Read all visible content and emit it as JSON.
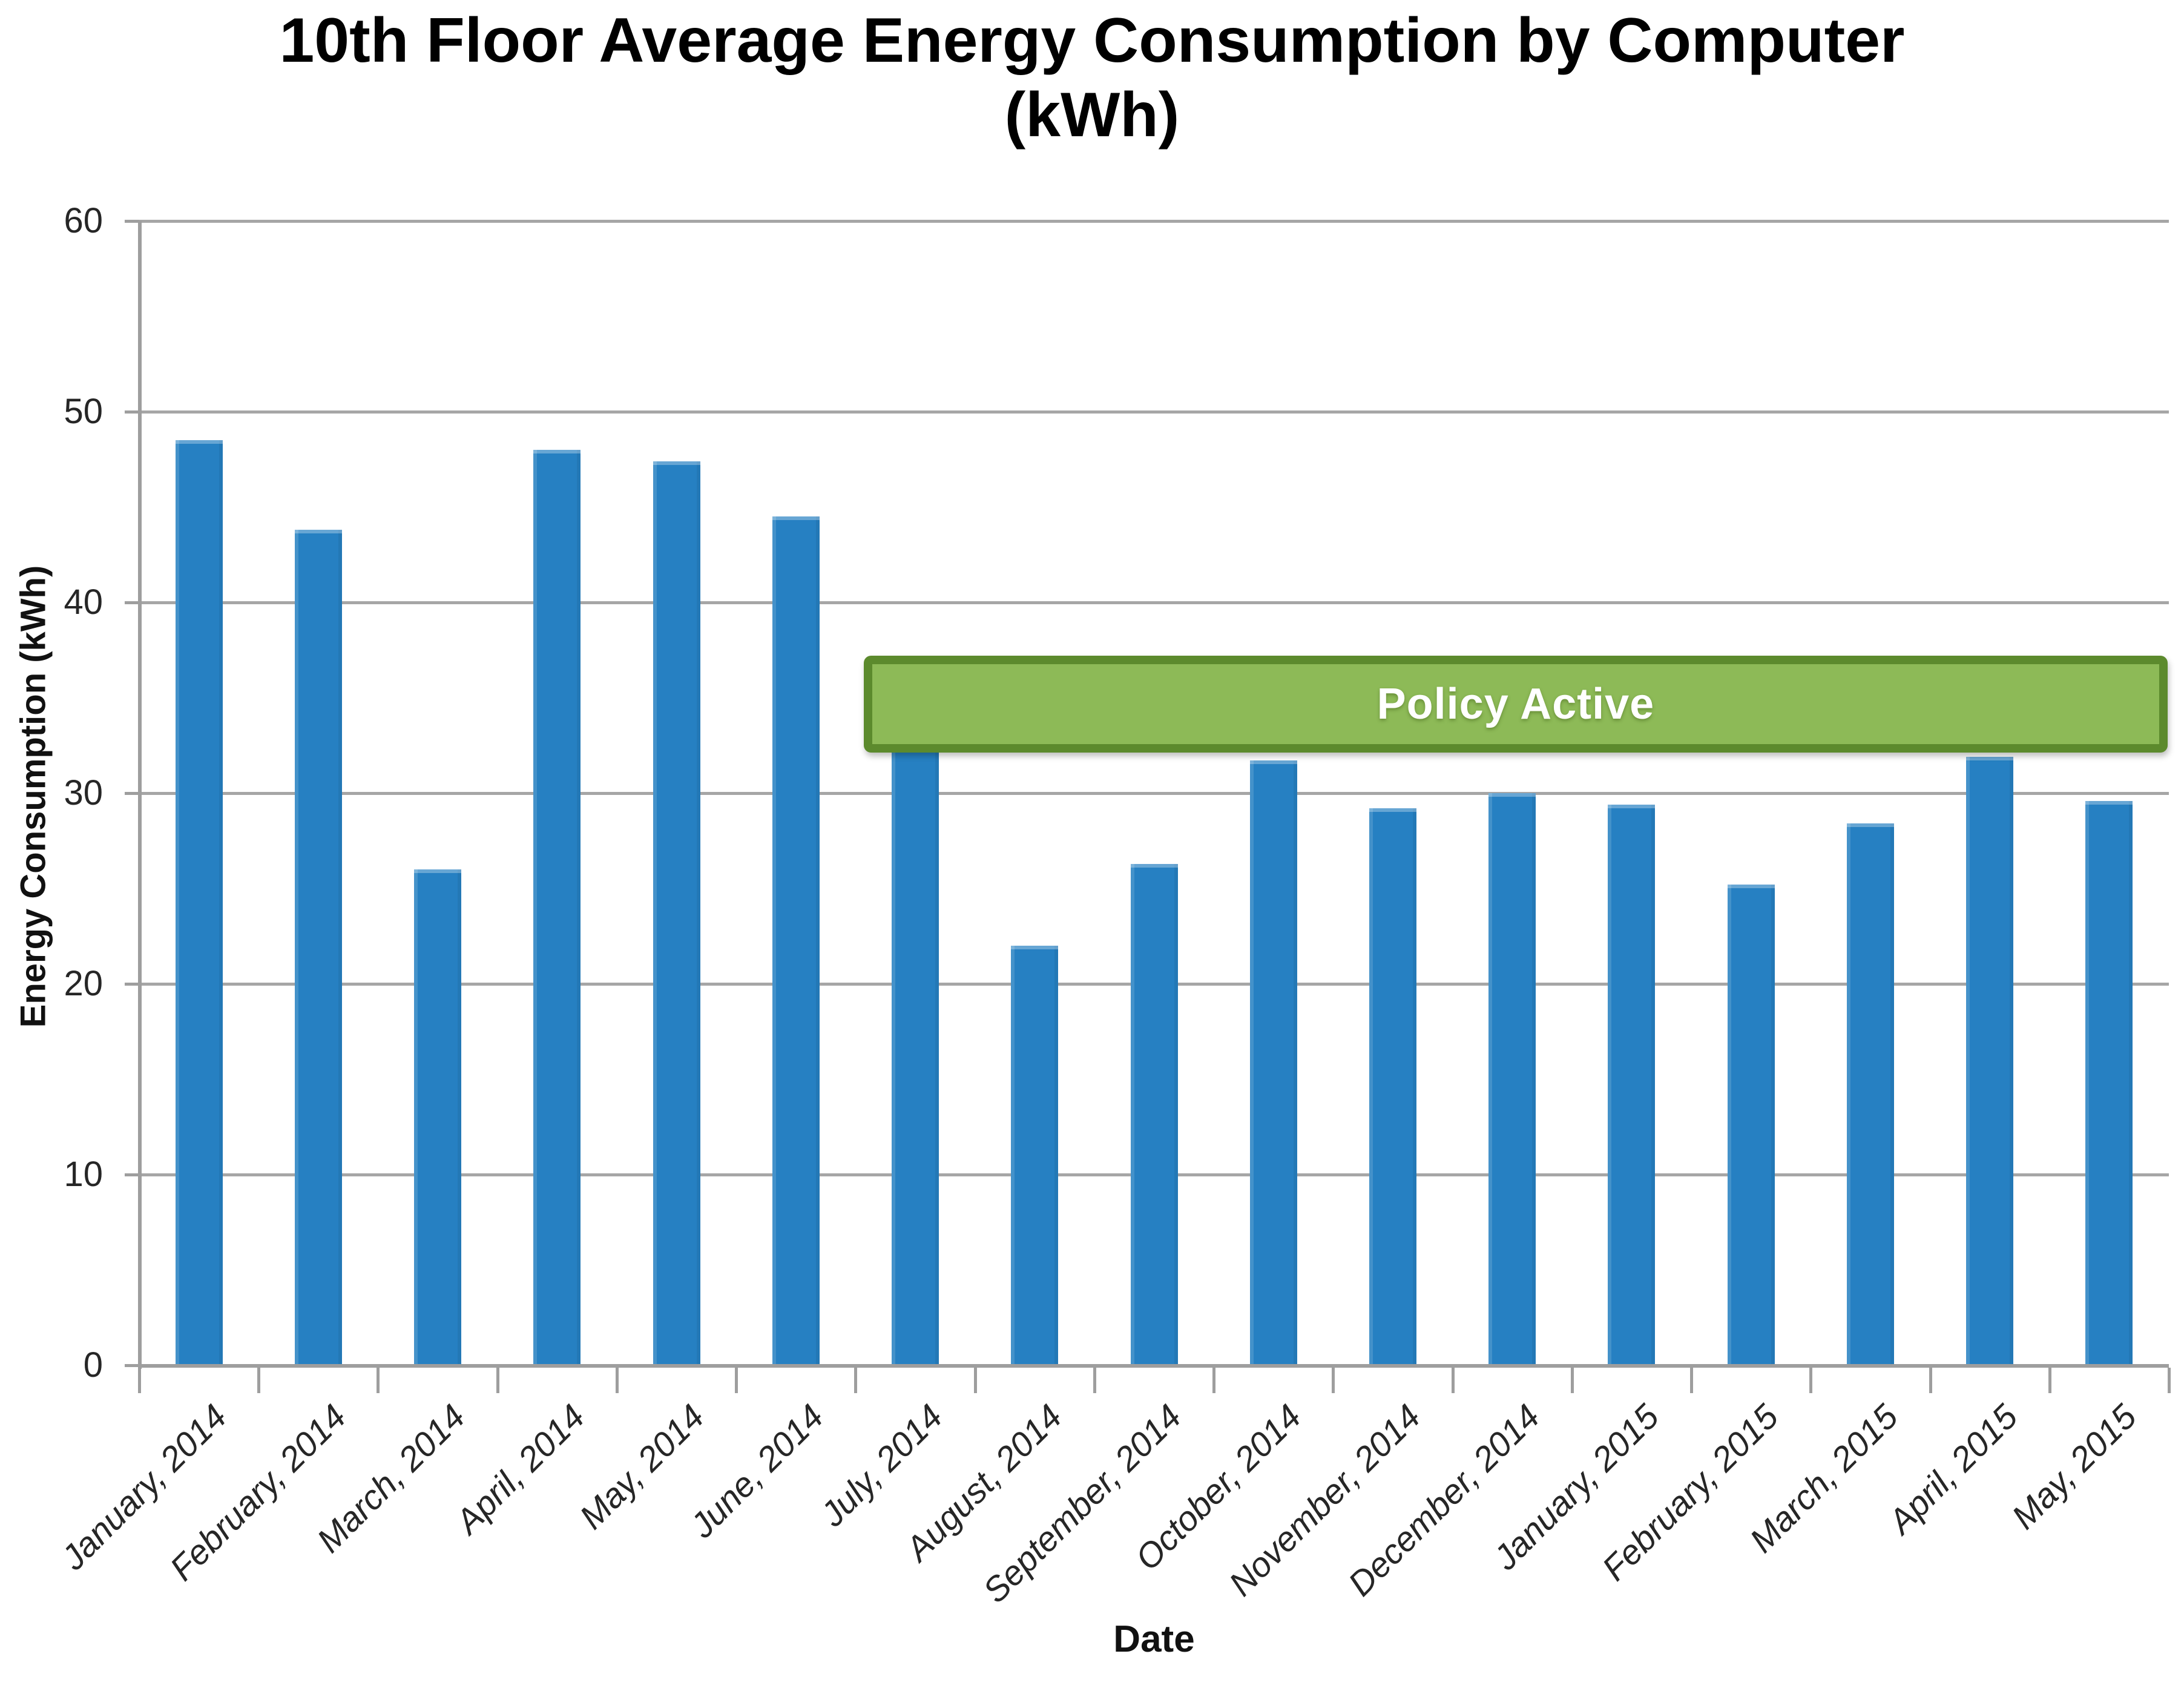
{
  "chart_data": {
    "type": "bar",
    "title_line1": "10th Floor Average Energy Consumption by Computer",
    "title_line2": "(kWh)",
    "xlabel": "Date",
    "ylabel": "Energy Consumption (kWh)",
    "ylim": [
      0,
      60
    ],
    "yticks": [
      0,
      10,
      20,
      30,
      40,
      50,
      60
    ],
    "grid": "horizontal-only",
    "legend": "none",
    "categories": [
      "January, 2014",
      "February, 2014",
      "March, 2014",
      "April, 2014",
      "May, 2014",
      "June, 2014",
      "July, 2014",
      "August, 2014",
      "September, 2014",
      "October, 2014",
      "November, 2014",
      "December, 2014",
      "January, 2015",
      "February, 2015",
      "March, 2015",
      "April, 2015",
      "May, 2015"
    ],
    "values": [
      48.5,
      43.8,
      26.0,
      48.0,
      47.4,
      44.5,
      33.0,
      22.0,
      26.3,
      31.7,
      29.2,
      30.0,
      29.4,
      25.2,
      28.4,
      31.9,
      29.6
    ],
    "annotation": {
      "label": "Policy Active",
      "x_start_frac": 0.357,
      "x_end_frac": 0.991,
      "y_top_value": 37.2,
      "y_bottom_value": 33.0
    },
    "colors": {
      "bar": "#2680c2",
      "banner_fill": "#8dba57",
      "banner_border": "#5c8a2d",
      "banner_text": "#ffffff",
      "gridline": "#a6a6a6",
      "axis": "#9e9e9e",
      "tick_text": "#262626",
      "title_text": "#000000"
    }
  }
}
